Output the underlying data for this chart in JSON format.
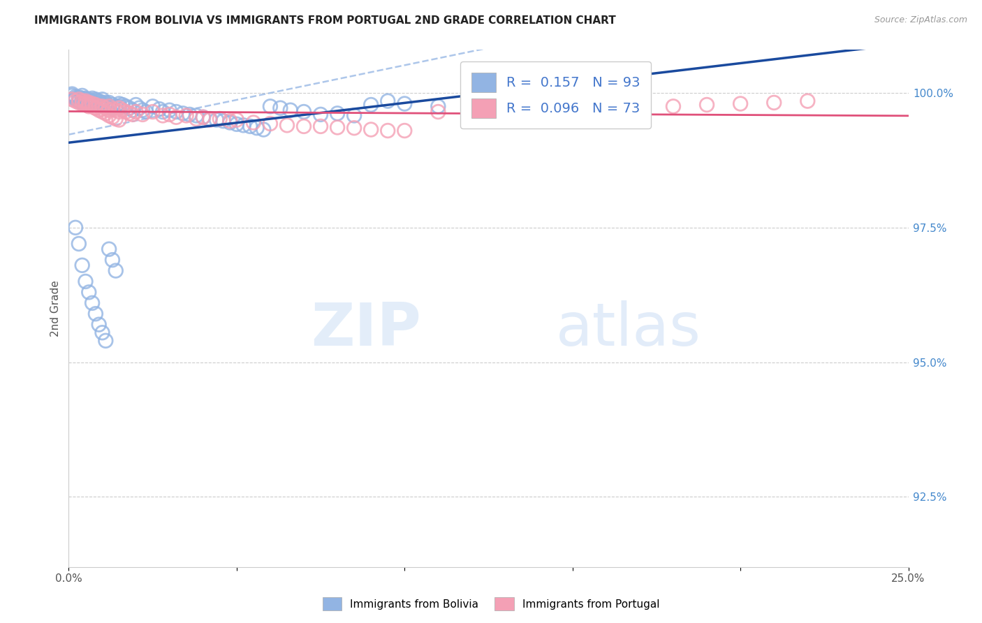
{
  "title": "IMMIGRANTS FROM BOLIVIA VS IMMIGRANTS FROM PORTUGAL 2ND GRADE CORRELATION CHART",
  "source": "Source: ZipAtlas.com",
  "ylabel": "2nd Grade",
  "ylabel_right_labels": [
    "100.0%",
    "97.5%",
    "95.0%",
    "92.5%"
  ],
  "ylabel_right_values": [
    1.0,
    0.975,
    0.95,
    0.925
  ],
  "bolivia_color": "#92b4e3",
  "portugal_color": "#f4a0b5",
  "bolivia_line_color": "#1a4a9e",
  "portugal_line_color": "#e0507a",
  "confidence_line_color": "#92b4e3",
  "watermark_zip": "ZIP",
  "watermark_atlas": "atlas",
  "bolivia_R": 0.157,
  "bolivia_N": 93,
  "portugal_R": 0.096,
  "portugal_N": 73,
  "xmin": 0.0,
  "xmax": 0.25,
  "ymin": 0.912,
  "ymax": 1.008,
  "bolivia_scatter_x": [
    0.001,
    0.001,
    0.002,
    0.002,
    0.002,
    0.003,
    0.003,
    0.003,
    0.004,
    0.004,
    0.004,
    0.004,
    0.005,
    0.005,
    0.005,
    0.005,
    0.006,
    0.006,
    0.006,
    0.006,
    0.007,
    0.007,
    0.007,
    0.008,
    0.008,
    0.008,
    0.009,
    0.009,
    0.01,
    0.01,
    0.01,
    0.011,
    0.011,
    0.012,
    0.012,
    0.013,
    0.013,
    0.014,
    0.015,
    0.015,
    0.016,
    0.017,
    0.018,
    0.019,
    0.02,
    0.021,
    0.022,
    0.023,
    0.025,
    0.027,
    0.028,
    0.03,
    0.032,
    0.034,
    0.036,
    0.038,
    0.04,
    0.042,
    0.044,
    0.046,
    0.048,
    0.05,
    0.052,
    0.054,
    0.056,
    0.058,
    0.06,
    0.063,
    0.066,
    0.07,
    0.075,
    0.08,
    0.085,
    0.09,
    0.095,
    0.1,
    0.11,
    0.12,
    0.13,
    0.14,
    0.002,
    0.003,
    0.004,
    0.005,
    0.006,
    0.007,
    0.008,
    0.009,
    0.01,
    0.011,
    0.012,
    0.013,
    0.014
  ],
  "bolivia_scatter_y": [
    0.9998,
    0.9995,
    0.9993,
    0.999,
    0.9988,
    0.9992,
    0.9988,
    0.9985,
    0.9995,
    0.999,
    0.9985,
    0.9982,
    0.999,
    0.9988,
    0.9985,
    0.9982,
    0.9988,
    0.9985,
    0.9982,
    0.9978,
    0.999,
    0.9985,
    0.998,
    0.9988,
    0.9985,
    0.998,
    0.9985,
    0.9978,
    0.9988,
    0.9982,
    0.9978,
    0.9982,
    0.9978,
    0.9982,
    0.9975,
    0.9978,
    0.9972,
    0.9975,
    0.998,
    0.9975,
    0.9978,
    0.9975,
    0.9972,
    0.9968,
    0.9978,
    0.9972,
    0.9968,
    0.9965,
    0.9975,
    0.997,
    0.9965,
    0.9968,
    0.9965,
    0.9962,
    0.996,
    0.9958,
    0.9955,
    0.9952,
    0.995,
    0.9948,
    0.9945,
    0.9942,
    0.994,
    0.9938,
    0.9935,
    0.9932,
    0.9975,
    0.9972,
    0.9968,
    0.9965,
    0.996,
    0.9962,
    0.9958,
    0.9978,
    0.9985,
    0.998,
    0.9975,
    0.9982,
    0.9988,
    0.999,
    0.975,
    0.972,
    0.968,
    0.965,
    0.963,
    0.961,
    0.959,
    0.957,
    0.9555,
    0.954,
    0.971,
    0.969,
    0.967
  ],
  "portugal_scatter_x": [
    0.001,
    0.002,
    0.003,
    0.004,
    0.005,
    0.005,
    0.006,
    0.006,
    0.007,
    0.008,
    0.008,
    0.009,
    0.01,
    0.01,
    0.011,
    0.012,
    0.012,
    0.013,
    0.014,
    0.015,
    0.015,
    0.016,
    0.017,
    0.018,
    0.019,
    0.02,
    0.022,
    0.025,
    0.028,
    0.03,
    0.032,
    0.035,
    0.038,
    0.04,
    0.042,
    0.045,
    0.048,
    0.05,
    0.055,
    0.06,
    0.065,
    0.07,
    0.075,
    0.08,
    0.085,
    0.09,
    0.095,
    0.1,
    0.11,
    0.12,
    0.13,
    0.14,
    0.15,
    0.16,
    0.17,
    0.18,
    0.19,
    0.2,
    0.21,
    0.22,
    0.003,
    0.004,
    0.005,
    0.006,
    0.007,
    0.008,
    0.009,
    0.01,
    0.011,
    0.012,
    0.013,
    0.014,
    0.015
  ],
  "portugal_scatter_y": [
    0.9988,
    0.9985,
    0.9982,
    0.998,
    0.9985,
    0.9978,
    0.9982,
    0.9975,
    0.998,
    0.9978,
    0.9972,
    0.9975,
    0.9975,
    0.997,
    0.9972,
    0.9975,
    0.9968,
    0.997,
    0.9968,
    0.9972,
    0.9965,
    0.9968,
    0.9965,
    0.9962,
    0.996,
    0.9965,
    0.996,
    0.9965,
    0.9958,
    0.996,
    0.9955,
    0.9958,
    0.9952,
    0.9955,
    0.995,
    0.9952,
    0.9948,
    0.995,
    0.9945,
    0.9943,
    0.994,
    0.9938,
    0.9938,
    0.9936,
    0.9935,
    0.9932,
    0.993,
    0.993,
    0.9965,
    0.996,
    0.9958,
    0.9962,
    0.9965,
    0.9968,
    0.9972,
    0.9975,
    0.9978,
    0.998,
    0.9982,
    0.9985,
    0.9988,
    0.9985,
    0.9982,
    0.9978,
    0.9975,
    0.9972,
    0.9968,
    0.9965,
    0.9962,
    0.9958,
    0.9955,
    0.9952,
    0.995
  ]
}
